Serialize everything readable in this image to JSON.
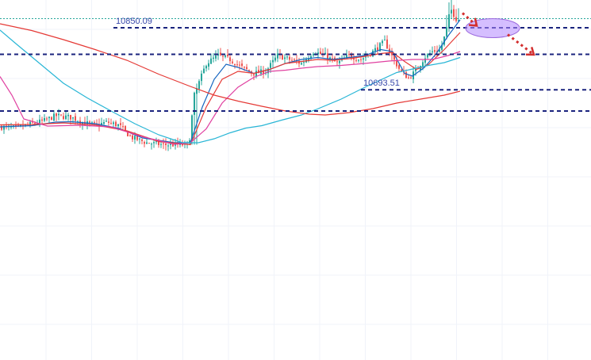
{
  "chart_data": {
    "type": "candlestick",
    "title": "",
    "xlabel": "",
    "ylabel": "",
    "grid": true,
    "ylim": [
      10560,
      10920
    ],
    "colors": {
      "up": "#26a69a",
      "down": "#ef5350",
      "level_line": "#1a237e",
      "projection": "#d32f2f",
      "target_zone": "#b388ff",
      "ma_fast": "#1565c0",
      "ma_red": "#e53935",
      "ma_pink": "#e040a0",
      "ma_cyan": "#29b6d6",
      "ma_slow": "#e53935",
      "current_price_line": "#26a69a"
    },
    "levels": [
      {
        "value": 10850.09,
        "label": "10850.09"
      },
      {
        "value": 10693.51,
        "label": "10693.51"
      },
      {
        "value": 10783
      },
      {
        "value": 10640
      }
    ],
    "current_price": 10873,
    "candle_anchors": [
      [
        0,
        10600
      ],
      [
        20,
        10597
      ],
      [
        40,
        10608
      ],
      [
        55,
        10615
      ],
      [
        70,
        10628
      ],
      [
        90,
        10624
      ],
      [
        105,
        10611
      ],
      [
        120,
        10604
      ],
      [
        135,
        10612
      ],
      [
        150,
        10604
      ],
      [
        165,
        10574
      ],
      [
        185,
        10560
      ],
      [
        205,
        10555
      ],
      [
        220,
        10555
      ],
      [
        238,
        10555
      ],
      [
        245,
        10680
      ],
      [
        260,
        10760
      ],
      [
        275,
        10780
      ],
      [
        290,
        10770
      ],
      [
        305,
        10750
      ],
      [
        320,
        10735
      ],
      [
        335,
        10740
      ],
      [
        350,
        10780
      ],
      [
        365,
        10770
      ],
      [
        380,
        10760
      ],
      [
        395,
        10790
      ],
      [
        410,
        10780
      ],
      [
        425,
        10760
      ],
      [
        440,
        10780
      ],
      [
        455,
        10770
      ],
      [
        470,
        10790
      ],
      [
        485,
        10815
      ],
      [
        495,
        10775
      ],
      [
        505,
        10740
      ],
      [
        515,
        10723
      ],
      [
        525,
        10743
      ],
      [
        535,
        10775
      ],
      [
        545,
        10790
      ],
      [
        555,
        10794
      ],
      [
        562,
        10838
      ],
      [
        568,
        10898
      ],
      [
        575,
        10873
      ],
      [
        580,
        10870
      ]
    ],
    "moving_averages": [
      {
        "id": "ma_fast",
        "points": [
          [
            0,
            10600
          ],
          [
            40,
            10603
          ],
          [
            70,
            10612
          ],
          [
            90,
            10613
          ],
          [
            120,
            10608
          ],
          [
            150,
            10596
          ],
          [
            180,
            10572
          ],
          [
            220,
            10560
          ],
          [
            240,
            10560
          ],
          [
            255,
            10650
          ],
          [
            270,
            10720
          ],
          [
            285,
            10758
          ],
          [
            300,
            10750
          ],
          [
            320,
            10735
          ],
          [
            340,
            10745
          ],
          [
            360,
            10760
          ],
          [
            380,
            10770
          ],
          [
            400,
            10775
          ],
          [
            420,
            10770
          ],
          [
            440,
            10775
          ],
          [
            460,
            10780
          ],
          [
            480,
            10795
          ],
          [
            495,
            10790
          ],
          [
            510,
            10735
          ],
          [
            520,
            10728
          ],
          [
            535,
            10750
          ],
          [
            550,
            10785
          ],
          [
            565,
            10830
          ],
          [
            580,
            10870
          ]
        ]
      },
      {
        "id": "ma_red",
        "points": [
          [
            0,
            10605
          ],
          [
            40,
            10606
          ],
          [
            80,
            10610
          ],
          [
            120,
            10605
          ],
          [
            160,
            10590
          ],
          [
            200,
            10563
          ],
          [
            240,
            10555
          ],
          [
            260,
            10650
          ],
          [
            280,
            10720
          ],
          [
            300,
            10740
          ],
          [
            320,
            10735
          ],
          [
            340,
            10745
          ],
          [
            360,
            10760
          ],
          [
            380,
            10765
          ],
          [
            400,
            10770
          ],
          [
            420,
            10768
          ],
          [
            440,
            10772
          ],
          [
            460,
            10778
          ],
          [
            480,
            10785
          ],
          [
            495,
            10788
          ],
          [
            510,
            10765
          ],
          [
            525,
            10745
          ],
          [
            540,
            10757
          ],
          [
            560,
            10795
          ],
          [
            580,
            10838
          ]
        ]
      },
      {
        "id": "ma_pink",
        "points": [
          [
            0,
            10727
          ],
          [
            15,
            10680
          ],
          [
            30,
            10620
          ],
          [
            60,
            10602
          ],
          [
            100,
            10604
          ],
          [
            140,
            10600
          ],
          [
            180,
            10575
          ],
          [
            220,
            10556
          ],
          [
            240,
            10560
          ],
          [
            260,
            10595
          ],
          [
            280,
            10660
          ],
          [
            300,
            10700
          ],
          [
            320,
            10725
          ],
          [
            340,
            10740
          ],
          [
            360,
            10743
          ],
          [
            380,
            10748
          ],
          [
            400,
            10752
          ],
          [
            430,
            10755
          ],
          [
            460,
            10760
          ],
          [
            490,
            10766
          ],
          [
            520,
            10770
          ],
          [
            545,
            10770
          ],
          [
            565,
            10780
          ],
          [
            580,
            10790
          ]
        ]
      },
      {
        "id": "ma_cyan",
        "points": [
          [
            0,
            10844
          ],
          [
            20,
            10810
          ],
          [
            50,
            10760
          ],
          [
            80,
            10710
          ],
          [
            110,
            10673
          ],
          [
            140,
            10640
          ],
          [
            170,
            10608
          ],
          [
            200,
            10580
          ],
          [
            230,
            10560
          ],
          [
            250,
            10560
          ],
          [
            270,
            10570
          ],
          [
            290,
            10585
          ],
          [
            310,
            10597
          ],
          [
            330,
            10603
          ],
          [
            355,
            10617
          ],
          [
            380,
            10630
          ],
          [
            400,
            10645
          ],
          [
            430,
            10670
          ],
          [
            460,
            10700
          ],
          [
            500,
            10737
          ],
          [
            540,
            10755
          ],
          [
            560,
            10762
          ],
          [
            580,
            10775
          ]
        ]
      },
      {
        "id": "ma_slow",
        "points": [
          [
            0,
            10860
          ],
          [
            40,
            10843
          ],
          [
            80,
            10820
          ],
          [
            120,
            10795
          ],
          [
            160,
            10768
          ],
          [
            200,
            10733
          ],
          [
            240,
            10702
          ],
          [
            270,
            10680
          ],
          [
            300,
            10665
          ],
          [
            330,
            10652
          ],
          [
            360,
            10640
          ],
          [
            390,
            10632
          ],
          [
            410,
            10630
          ],
          [
            440,
            10636
          ],
          [
            470,
            10646
          ],
          [
            500,
            10660
          ],
          [
            530,
            10670
          ],
          [
            560,
            10680
          ],
          [
            580,
            10690
          ]
        ]
      }
    ],
    "projection": {
      "points": [
        [
          583,
          10887
        ],
        [
          601,
          10855
        ],
        [
          640,
          10833
        ],
        [
          673,
          10782
        ]
      ],
      "target_zone_center": [
        621,
        10849
      ]
    }
  }
}
